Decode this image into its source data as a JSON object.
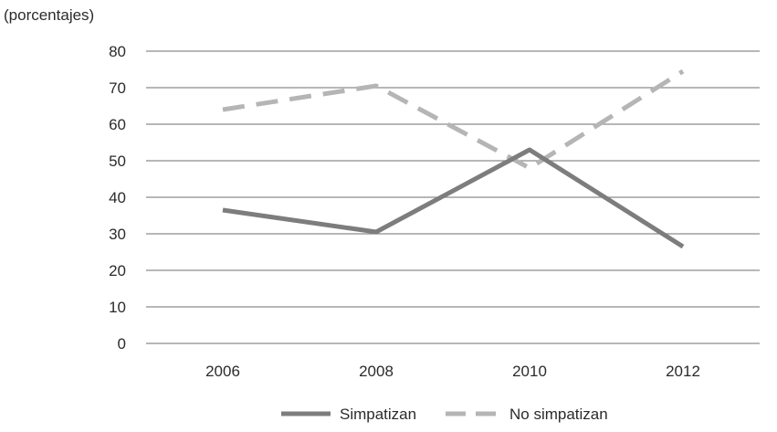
{
  "chart_data": {
    "type": "line",
    "title": "",
    "xlabel": "",
    "ylabel": "(porcentajes)",
    "categories": [
      "2006",
      "2008",
      "2010",
      "2012"
    ],
    "ylim": [
      0,
      80
    ],
    "yticks": [
      "0",
      "10",
      "20",
      "30",
      "40",
      "50",
      "60",
      "70",
      "80"
    ],
    "grid": true,
    "legend_position": "bottom",
    "series": [
      {
        "name": "Simpatizan",
        "values": [
          36.5,
          30.5,
          53,
          26.5
        ],
        "color": "#7d7d7d",
        "style": "solid"
      },
      {
        "name": "No simpatizan",
        "values": [
          64,
          70.5,
          48,
          74.5
        ],
        "color": "#b5b5b5",
        "style": "dashed"
      }
    ]
  }
}
